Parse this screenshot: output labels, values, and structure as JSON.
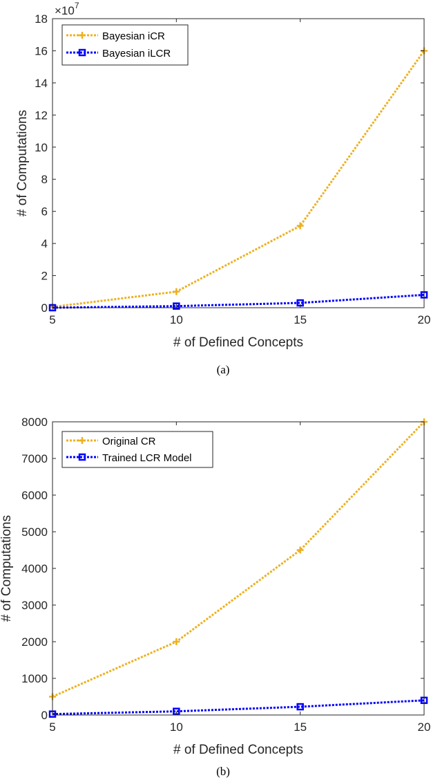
{
  "chart_data": [
    {
      "type": "line",
      "caption": "(a)",
      "xlabel": "# of Defined Concepts",
      "ylabel": "# of Computations",
      "y_multiplier": "×10",
      "y_exponent": "7",
      "xlim": [
        5,
        20
      ],
      "ylim": [
        0,
        18
      ],
      "xticks": [
        5,
        10,
        15,
        20
      ],
      "yticks": [
        0,
        2,
        4,
        6,
        8,
        10,
        12,
        14,
        16,
        18
      ],
      "legend_position": "top-left",
      "x": [
        5,
        10,
        15,
        20
      ],
      "series": [
        {
          "name": "Bayesian iCR",
          "values": [
            0.05,
            1.0,
            5.1,
            16.0
          ],
          "color": "#EDB120",
          "marker": "plus"
        },
        {
          "name": "Bayesian iLCR",
          "values": [
            0.0,
            0.1,
            0.3,
            0.8
          ],
          "color": "#0000FF",
          "marker": "square"
        }
      ]
    },
    {
      "type": "line",
      "caption": "(b)",
      "xlabel": "# of Defined Concepts",
      "ylabel": "# of Computations",
      "xlim": [
        5,
        20
      ],
      "ylim": [
        0,
        8000
      ],
      "xticks": [
        5,
        10,
        15,
        20
      ],
      "yticks": [
        0,
        1000,
        2000,
        3000,
        4000,
        5000,
        6000,
        7000,
        8000
      ],
      "legend_position": "top-left",
      "x": [
        5,
        10,
        15,
        20
      ],
      "series": [
        {
          "name": "Original CR",
          "values": [
            500,
            2000,
            4500,
            8000
          ],
          "color": "#EDB120",
          "marker": "plus"
        },
        {
          "name": "Trained LCR Model",
          "values": [
            25,
            100,
            225,
            400
          ],
          "color": "#0000FF",
          "marker": "square"
        }
      ]
    }
  ]
}
